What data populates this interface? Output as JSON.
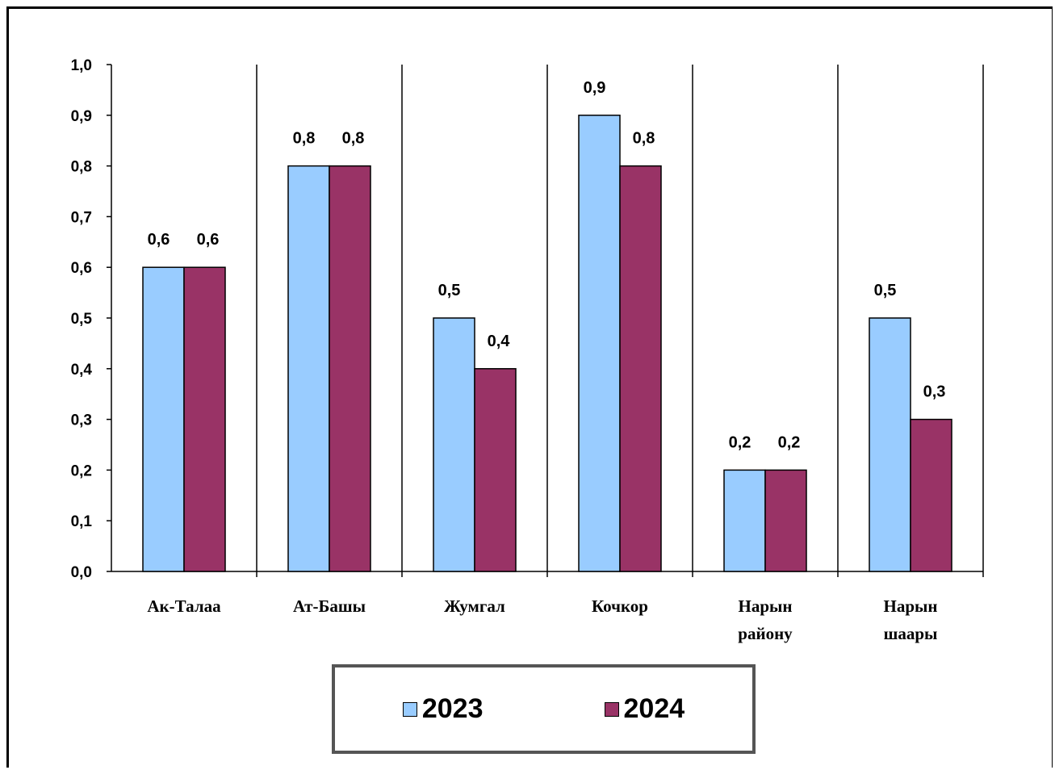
{
  "chart_data": {
    "type": "bar",
    "categories": [
      [
        "Ак-Талаа"
      ],
      [
        "Ат-Башы"
      ],
      [
        "Жумгал"
      ],
      [
        "Кочкор"
      ],
      [
        "Нарын",
        "району"
      ],
      [
        "Нарын",
        "шаары"
      ]
    ],
    "series": [
      {
        "name": "2023",
        "color": "#99ccff",
        "values": [
          0.6,
          0.8,
          0.5,
          0.9,
          0.2,
          0.5
        ],
        "labels": [
          "0,6",
          "0,8",
          "0,5",
          "0,9",
          "0,2",
          "0,5"
        ]
      },
      {
        "name": "2024",
        "color": "#993366",
        "values": [
          0.6,
          0.8,
          0.4,
          0.8,
          0.2,
          0.3
        ],
        "labels": [
          "0,6",
          "0,8",
          "0,4",
          "0,8",
          "0,2",
          "0,3"
        ]
      }
    ],
    "yticks": [
      "0,0",
      "0,1",
      "0,2",
      "0,3",
      "0,4",
      "0,5",
      "0,6",
      "0,7",
      "0,8",
      "0,9",
      "1,0"
    ],
    "ylim": [
      0,
      1.0
    ],
    "grid": false,
    "category_separators": true,
    "legend_position": "bottom"
  }
}
